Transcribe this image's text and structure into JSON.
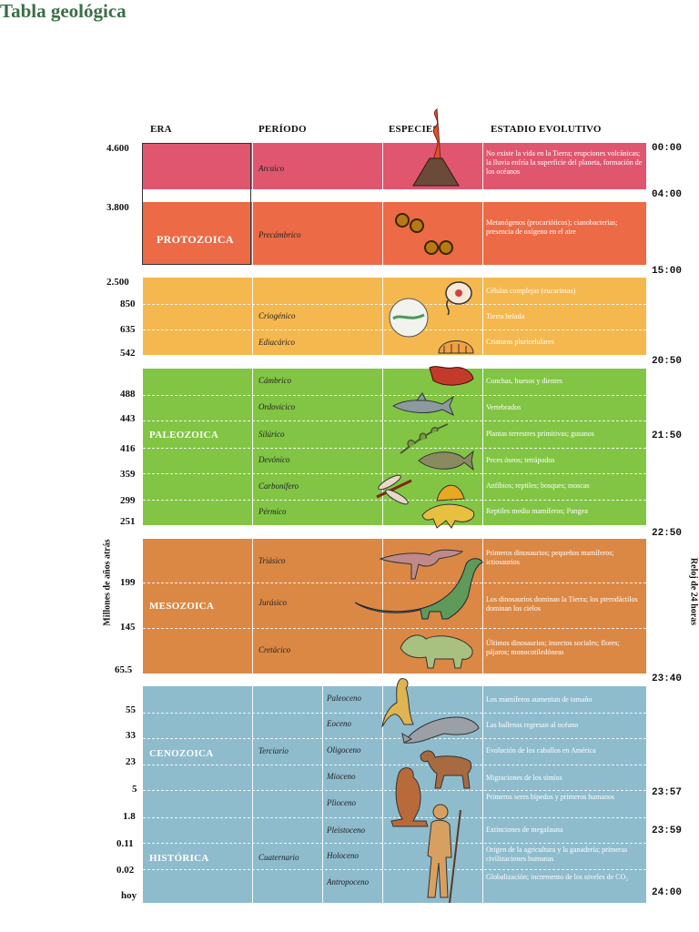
{
  "title": "Tabla geológica",
  "headers": {
    "era": "ERA",
    "periodo": "PERÍODO",
    "especies": "ESPECIES",
    "estadio": "ESTADIO EVOLUTIVO"
  },
  "y_axis_label": "Millones de años atrás",
  "right_label": "Reloj de 24 horas",
  "ages": [
    "4.600",
    "3.800",
    "2.500",
    "850",
    "635",
    "542",
    "488",
    "443",
    "416",
    "359",
    "299",
    "251",
    "199",
    "145",
    "65.5",
    "55",
    "33",
    "23",
    "5",
    "1.8",
    "0.11",
    "0.02",
    "hoy"
  ],
  "clock": [
    "00:00",
    "04:00",
    "15:00",
    "20:50",
    "21:50",
    "22:50",
    "23:40",
    "23:57",
    "23:59",
    "24:00"
  ],
  "eras": [
    "PROTOZOICA",
    "PALEOZOICA",
    "MESOZOICA",
    "CENOZOICA",
    "HISTÓRICA"
  ],
  "periods": [
    "Arcaico",
    "Precámbrico",
    "Criogénico",
    "Ediacárico",
    "Cámbrico",
    "Ordovícico",
    "Silúrico",
    "Devónico",
    "Carbonífero",
    "Pérmico",
    "Triásico",
    "Jurásico",
    "Cretácico",
    "Terciario",
    "Cuaternario"
  ],
  "epochs": [
    "Paleoceno",
    "Eoceno",
    "Oligoceno",
    "Mioceno",
    "Plioceno",
    "Pleistoceno",
    "Holoceno",
    "Antropoceno"
  ],
  "evolution": [
    "No existe la vida en la Tierra; erupciones volcánicas; la lluvia enfría la superficie del planeta, formación de los océanos",
    "Metanógenos (procarióticos); cianobacterias; presencia de oxígeno en el aire",
    "Células complejas (eucariotas)",
    "Tierra helada",
    "Criaturas pluricelulares",
    "Conchas, huesos y dientes",
    "Vertebrados",
    "Plantas terrestres primitivas; gusanos",
    "Peces óseos; tetrápodos",
    "Anfibios; reptiles; bosques; moscas",
    "Reptiles medio mamíferos; Pangea",
    "Primeros dinosaurios; pequeños mamíferos; ictiosaurios",
    "Los dinosaurios dominan la Tierra; los pterodáctilos dominan los cielos",
    "Últimos dinosaurios; insectos sociales; flores; pájaros; monocotiledóneas",
    "Los mamíferos aumentan de tamaño",
    "Las ballenas regresan al océano",
    "Evolución de los caballos en América",
    "Migraciones de los simios",
    "Primeros seres bípedos y primeros humanos",
    "Extinciones de megafauna",
    "Origen de la agricultura y la ganadería; primeras civilizaciones humanas",
    "Globalización; incremento de los niveles de CO₂"
  ],
  "colors": {
    "arcaico": "#e0566e",
    "precambrico": "#ec6a45",
    "proterozoico": "#f5b84e",
    "paleozoica": "#82c545",
    "mesozoica": "#db8845",
    "cenozoica": "#8ebccd",
    "title": "#3a6e48"
  }
}
